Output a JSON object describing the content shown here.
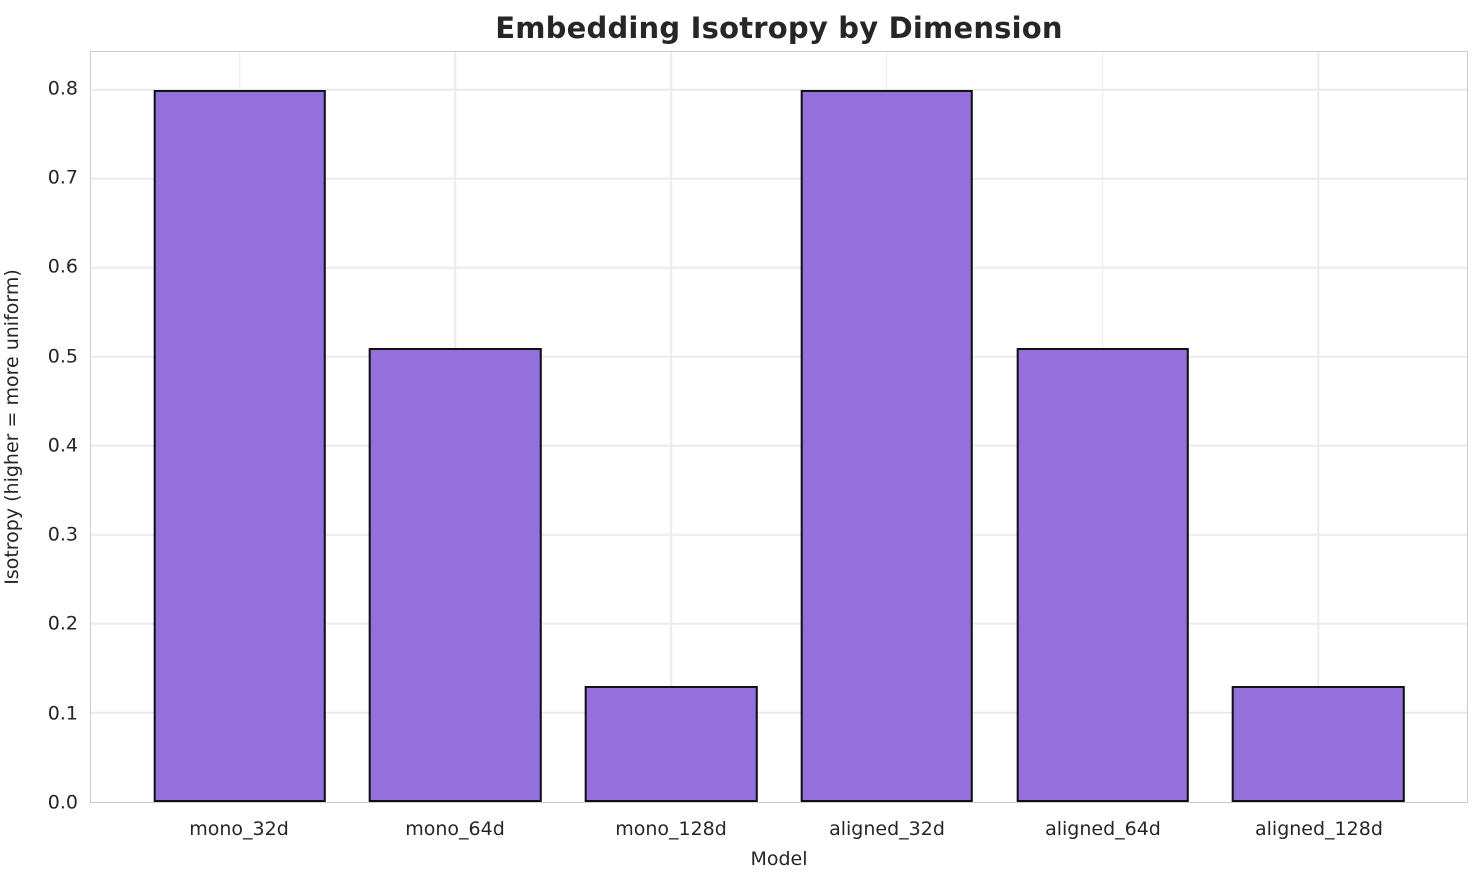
{
  "chart_data": {
    "type": "bar",
    "title": "Embedding Isotropy by Dimension",
    "xlabel": "Model",
    "ylabel": "Isotropy (higher = more uniform)",
    "categories": [
      "mono_32d",
      "mono_64d",
      "mono_128d",
      "aligned_32d",
      "aligned_64d",
      "aligned_128d"
    ],
    "values": [
      0.8,
      0.51,
      0.13,
      0.8,
      0.51,
      0.13
    ],
    "yticks": [
      0.0,
      0.1,
      0.2,
      0.3,
      0.4,
      0.5,
      0.6,
      0.7,
      0.8
    ],
    "ytick_labels": [
      "0.0",
      "0.1",
      "0.2",
      "0.3",
      "0.4",
      "0.5",
      "0.6",
      "0.7",
      "0.8"
    ],
    "ylim": [
      0,
      0.8425
    ],
    "xlim": [
      -0.69,
      5.69
    ],
    "bar_width": 0.8,
    "grid": true,
    "legend": null,
    "colors": {
      "bar_fill": "#9370DB",
      "bar_edge": "#111111",
      "gridline": "#ebebeb",
      "spine": "#cdcdcd",
      "text": "#262626"
    }
  }
}
